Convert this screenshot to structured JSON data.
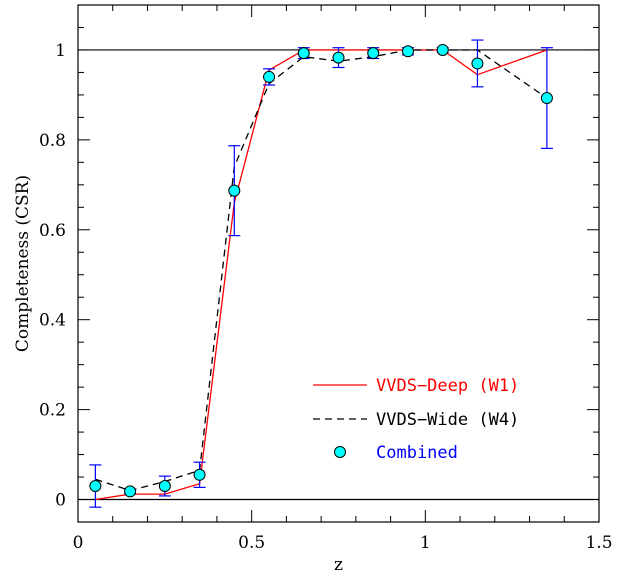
{
  "chart_data": {
    "type": "line",
    "xlabel": "z",
    "ylabel": "Completeness (CSR)",
    "xlim": [
      0,
      1.5
    ],
    "ylim": [
      -0.05,
      1.1
    ],
    "xticks": [
      0,
      0.5,
      1,
      1.5
    ],
    "xtick_labels": [
      "0",
      "0.5",
      "1",
      "1.5"
    ],
    "yticks": [
      0,
      0.2,
      0.4,
      0.6,
      0.8,
      1
    ],
    "ytick_labels": [
      "0",
      "0.2",
      "0.4",
      "0.6",
      "0.8",
      "1"
    ],
    "reference_lines_y": [
      0,
      1
    ],
    "grid": false,
    "legend_position": "bottom-right",
    "series": [
      {
        "name": "VVDS−Deep (W1)",
        "style": "solid",
        "color": "#ff0000",
        "x": [
          0.05,
          0.15,
          0.25,
          0.35,
          0.45,
          0.55,
          0.65,
          0.75,
          0.85,
          0.95,
          1.05,
          1.15,
          1.35
        ],
        "y": [
          0.0,
          0.012,
          0.012,
          0.035,
          0.66,
          0.955,
          1.0,
          1.0,
          1.0,
          1.0,
          1.0,
          0.945,
          1.0
        ]
      },
      {
        "name": "VVDS−Wide (W4)",
        "style": "dashed",
        "color": "#000000",
        "x": [
          0.05,
          0.15,
          0.25,
          0.35,
          0.45,
          0.55,
          0.65,
          0.75,
          0.85,
          0.95,
          1.05,
          1.15,
          1.35
        ],
        "y": [
          0.045,
          0.02,
          0.04,
          0.065,
          0.74,
          0.925,
          0.985,
          0.975,
          0.985,
          1.0,
          1.0,
          1.0,
          0.893
        ]
      },
      {
        "name": "Combined",
        "style": "markers",
        "color": "#00ffff",
        "edge_color": "#000000",
        "label_color": "#0000ff",
        "errorbar_color": "#0000ff",
        "x": [
          0.05,
          0.15,
          0.25,
          0.35,
          0.45,
          0.55,
          0.65,
          0.75,
          0.85,
          0.95,
          1.05,
          1.15,
          1.35
        ],
        "y": [
          0.03,
          0.018,
          0.03,
          0.055,
          0.687,
          0.94,
          0.993,
          0.983,
          0.993,
          0.997,
          1.0,
          0.97,
          0.893
        ],
        "yerr": [
          0.047,
          0.005,
          0.022,
          0.028,
          0.1,
          0.018,
          0.012,
          0.022,
          0.012,
          0.008,
          0.005,
          0.052,
          0.112
        ]
      }
    ]
  }
}
